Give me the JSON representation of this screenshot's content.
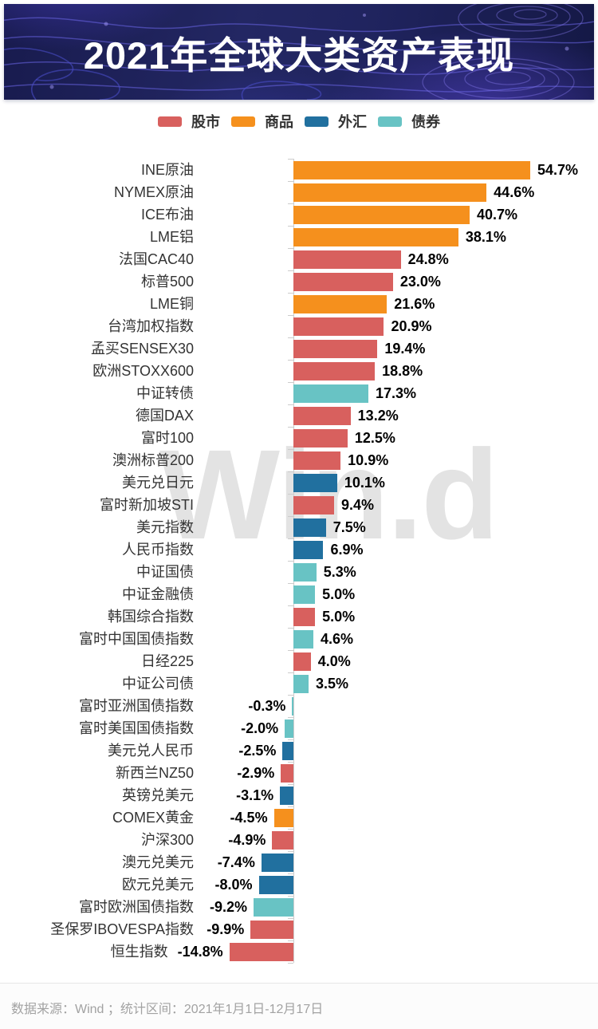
{
  "banner": {
    "title": "2021年全球大类资产表现"
  },
  "legend": {
    "items": [
      {
        "key": "stock",
        "label": "股市",
        "color": "#d8605e"
      },
      {
        "key": "commodity",
        "label": "商品",
        "color": "#f5901d"
      },
      {
        "key": "fx",
        "label": "外汇",
        "color": "#21709f"
      },
      {
        "key": "bond",
        "label": "债券",
        "color": "#68c3c4"
      }
    ]
  },
  "watermark": "Win.d",
  "footer": {
    "text": "数据来源：Wind ；统计区间：2021年1月1日-12月17日"
  },
  "chart_data": {
    "type": "bar",
    "orientation": "horizontal",
    "title": "2021年全球大类资产表现",
    "legend_position": "top",
    "legend_entries": [
      "股市",
      "商品",
      "外汇",
      "债券"
    ],
    "value_axis": {
      "visible": false,
      "unit": "%",
      "range": [
        -16,
        56
      ]
    },
    "data_labels": "shown at bar ends",
    "source_note": "数据来源：Wind ；统计区间：2021年1月1日-12月17日",
    "categories": [
      "INE原油",
      "NYMEX原油",
      "ICE布油",
      "LME铝",
      "法国CAC40",
      "标普500",
      "LME铜",
      "台湾加权指数",
      "孟买SENSEX30",
      "欧洲STOXX600",
      "中证转债",
      "德国DAX",
      "富时100",
      "澳洲标普200",
      "美元兑日元",
      "富时新加坡STI",
      "美元指数",
      "人民币指数",
      "中证国债",
      "中证金融债",
      "韩国综合指数",
      "富时中国国债指数",
      "日经225",
      "中证公司债",
      "富时亚洲国债指数",
      "富时美国国债指数",
      "美元兑人民币",
      "新西兰NZ50",
      "英镑兑美元",
      "COMEX黄金",
      "沪深300",
      "澳元兑美元",
      "欧元兑美元",
      "富时欧洲国债指数",
      "圣保罗IBOVESPA指数",
      "恒生指数"
    ],
    "values": [
      54.7,
      44.6,
      40.7,
      38.1,
      24.8,
      23.0,
      21.6,
      20.9,
      19.4,
      18.8,
      17.3,
      13.2,
      12.5,
      10.9,
      10.1,
      9.4,
      7.5,
      6.9,
      5.3,
      5.0,
      5.0,
      4.6,
      4.0,
      3.5,
      -0.3,
      -2.0,
      -2.5,
      -2.9,
      -3.1,
      -4.5,
      -4.9,
      -7.4,
      -8.0,
      -9.2,
      -9.9,
      -14.8
    ],
    "display_values": [
      "54.7%",
      "44.6%",
      "40.7%",
      "38.1%",
      "24.8%",
      "23.0%",
      "21.6%",
      "20.9%",
      "19.4%",
      "18.8%",
      "17.3%",
      "13.2%",
      "12.5%",
      "10.9%",
      "10.1%",
      "9.4%",
      "7.5%",
      "6.9%",
      "5.3%",
      "5.0%",
      "5.0%",
      "4.6%",
      "4.0%",
      "3.5%",
      "-0.3%",
      "-2.0%",
      "-2.5%",
      "-2.9%",
      "-3.1%",
      "-4.5%",
      "-4.9%",
      "-7.4%",
      "-8.0%",
      "-9.2%",
      "-9.9%",
      "-14.8%"
    ],
    "groups": [
      "commodity",
      "commodity",
      "commodity",
      "commodity",
      "stock",
      "stock",
      "commodity",
      "stock",
      "stock",
      "stock",
      "bond",
      "stock",
      "stock",
      "stock",
      "fx",
      "stock",
      "fx",
      "fx",
      "bond",
      "bond",
      "stock",
      "bond",
      "stock",
      "bond",
      "bond",
      "bond",
      "fx",
      "stock",
      "fx",
      "commodity",
      "stock",
      "fx",
      "fx",
      "bond",
      "stock",
      "stock"
    ]
  }
}
